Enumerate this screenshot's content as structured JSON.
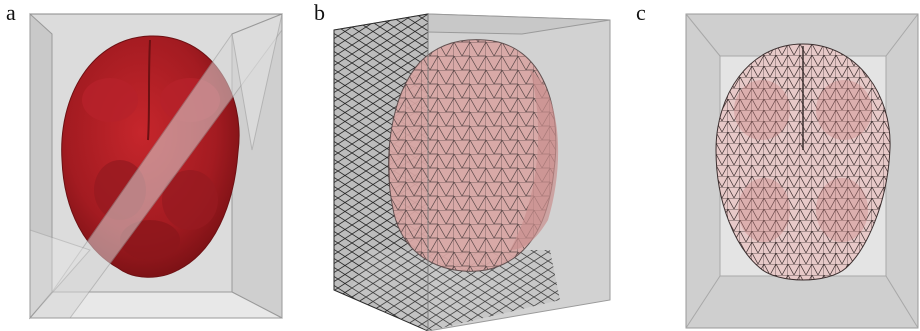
{
  "figure": {
    "panels": [
      {
        "label": "a"
      },
      {
        "label": "b"
      },
      {
        "label": "c"
      }
    ]
  },
  "colors": {
    "background": "#ffffff",
    "box_face": "#d4d4d4",
    "box_edge": "#9a9a9a",
    "brain_red": "#b21f24",
    "brain_pink": "#d89a98",
    "mesh_line": "#3a3a3a"
  }
}
